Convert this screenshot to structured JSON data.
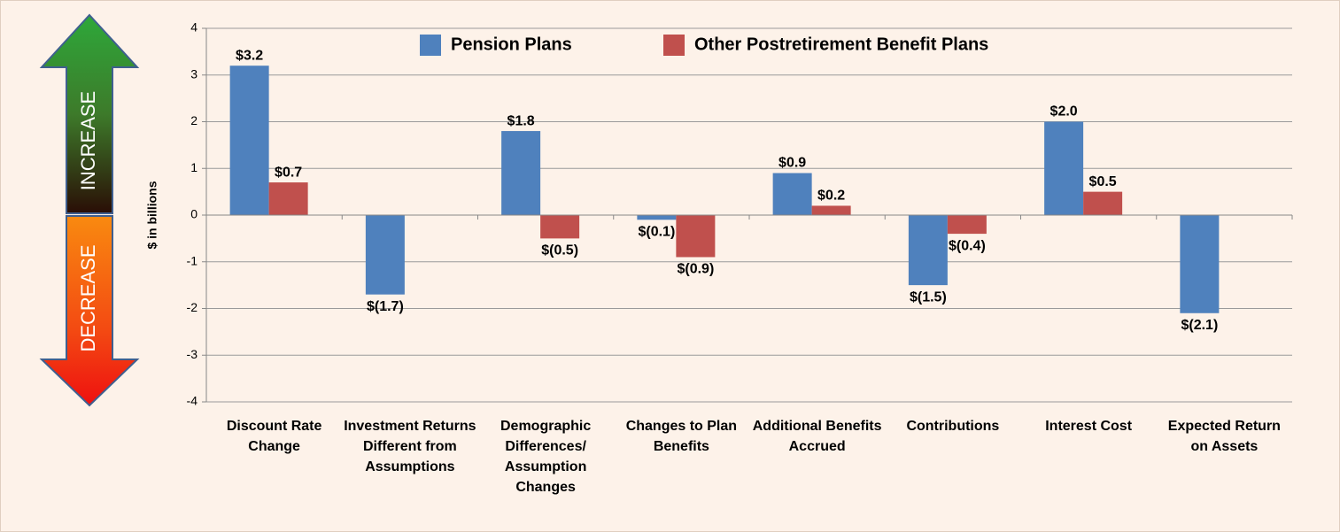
{
  "chart_data": {
    "type": "bar",
    "categories": [
      "Discount Rate Change",
      "Investment Returns Different from Assumptions",
      "Demographic Differences/ Assumption Changes",
      "Changes to Plan Benefits",
      "Additional Benefits Accrued",
      "Contributions",
      "Interest Cost",
      "Expected Return on Assets"
    ],
    "series": [
      {
        "name": "Pension Plans",
        "color": "#4f81bd",
        "values": [
          3.2,
          -1.7,
          1.8,
          -0.1,
          0.9,
          -1.5,
          2.0,
          -2.1
        ],
        "value_labels": [
          "$3.2",
          "$(1.7)",
          "$1.8",
          "$(0.1)",
          "$0.9",
          "$(1.5)",
          "$2.0",
          "$(2.1)"
        ]
      },
      {
        "name": "Other Postretirement Benefit Plans",
        "color": "#c0504d",
        "values": [
          0.7,
          null,
          -0.5,
          -0.9,
          0.2,
          -0.4,
          0.5,
          null
        ],
        "value_labels": [
          "$0.7",
          null,
          "$(0.5)",
          "$(0.9)",
          "$0.2",
          "$(0.4)",
          "$0.5",
          null
        ]
      }
    ],
    "ylabel": "$ in billions",
    "ylim": [
      -4,
      4
    ],
    "yticks": [
      -4,
      -3,
      -2,
      -1,
      0,
      1,
      2,
      3,
      4
    ],
    "grid": true,
    "legend": "top",
    "annotations": [
      "INCREASE",
      "DECREASE"
    ]
  }
}
